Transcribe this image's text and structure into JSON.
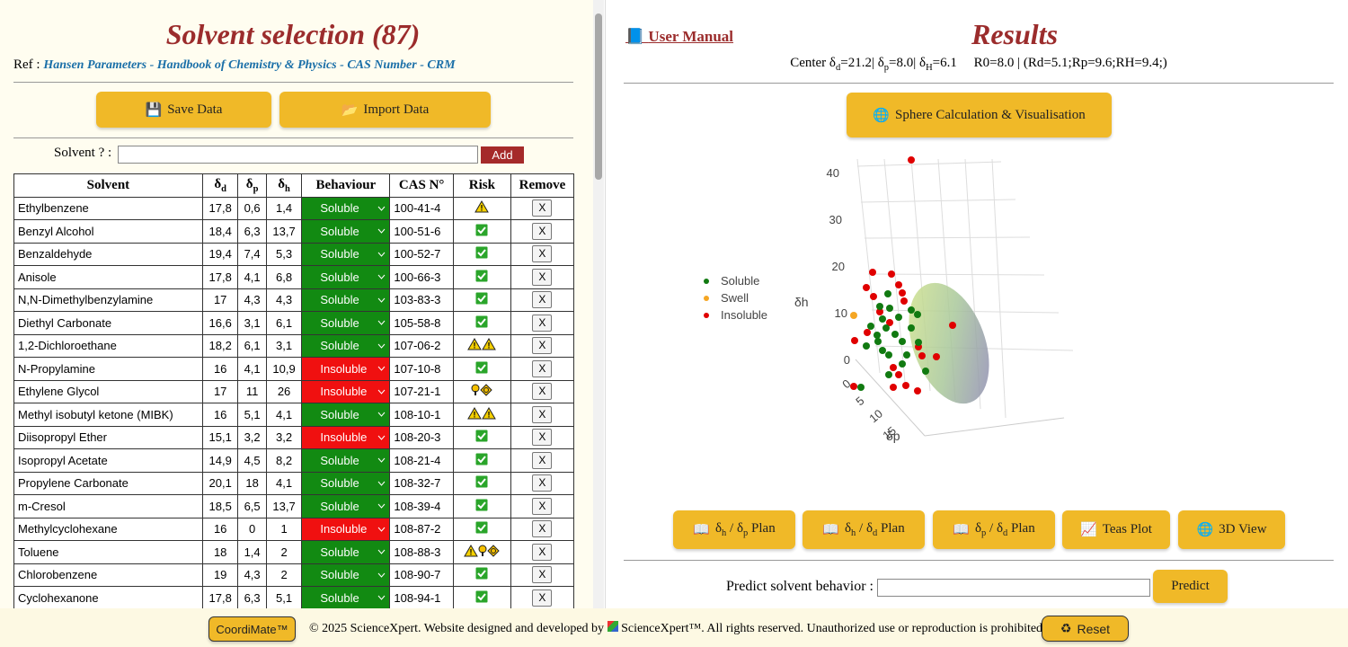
{
  "left": {
    "title": "Solvent selection (87)",
    "ref_label": "Ref :",
    "ref_links": [
      "Hansen Parameters",
      "Handbook of Chemistry & Physics",
      "CAS Number",
      "CRM"
    ],
    "ref_separator": " - ",
    "buttons": [
      "Save Data",
      "Import Data"
    ],
    "solvent_label": "Solvent ? :",
    "add": "Add",
    "table": {
      "headers": [
        "Solvent",
        [
          "δ",
          "d"
        ],
        [
          "δ",
          "p"
        ],
        [
          "δ",
          "h"
        ],
        "Behaviour",
        "CAS N°",
        "Risk",
        "Remove"
      ],
      "remove_label": "X",
      "rows": [
        [
          "Ethylbenzene",
          "17,8",
          "0,6",
          "1,4",
          "Soluble",
          "100-41-4"
        ],
        [
          "Benzyl Alcohol",
          "18,4",
          "6,3",
          "13,7",
          "Soluble",
          "100-51-6"
        ],
        [
          "Benzaldehyde",
          "19,4",
          "7,4",
          "5,3",
          "Soluble",
          "100-52-7"
        ],
        [
          "Anisole",
          "17,8",
          "4,1",
          "6,8",
          "Soluble",
          "100-66-3"
        ],
        [
          "N,N-Dimethylbenzylamine",
          "17",
          "4,3",
          "4,3",
          "Soluble",
          "103-83-3"
        ],
        [
          "Diethyl Carbonate",
          "16,6",
          "3,1",
          "6,1",
          "Soluble",
          "105-58-8"
        ],
        [
          "1,2-Dichloroethane",
          "18,2",
          "6,1",
          "3,1",
          "Soluble",
          "107-06-2"
        ],
        [
          "N-Propylamine",
          "16",
          "4,1",
          "10,9",
          "Insoluble",
          "107-10-8"
        ],
        [
          "Ethylene Glycol",
          "17",
          "11",
          "26",
          "Insoluble",
          "107-21-1"
        ],
        [
          "Methyl isobutyl ketone (MIBK)",
          "16",
          "5,1",
          "4,1",
          "Soluble",
          "108-10-1"
        ],
        [
          "Diisopropyl Ether",
          "15,1",
          "3,2",
          "3,2",
          "Insoluble",
          "108-20-3"
        ],
        [
          "Isopropyl Acetate",
          "14,9",
          "4,5",
          "8,2",
          "Soluble",
          "108-21-4"
        ],
        [
          "Propylene Carbonate",
          "20,1",
          "18",
          "4,1",
          "Soluble",
          "108-32-7"
        ],
        [
          "m-Cresol",
          "18,5",
          "6,5",
          "13,7",
          "Soluble",
          "108-39-4"
        ],
        [
          "Methylcyclohexane",
          "16",
          "0",
          "1",
          "Insoluble",
          "108-87-2"
        ],
        [
          "Toluene",
          "18",
          "1,4",
          "2",
          "Soluble",
          "108-88-3"
        ],
        [
          "Chlorobenzene",
          "19",
          "4,3",
          "2",
          "Soluble",
          "108-90-7"
        ],
        [
          "Cyclohexanone",
          "17,8",
          "6,3",
          "5,1",
          "Soluble",
          "108-94-1"
        ]
      ]
    }
  },
  "right": {
    "user_manual": "User Manual",
    "title": "Results",
    "center": [
      "Center δ",
      "d",
      "=21.2| δ",
      "p",
      "=8.0| δ",
      "H",
      "=6.1     R0=8.0 | (Rd=5.1;Rp=9.6;RH=9.4;)"
    ],
    "sphere_button": "Sphere Calculation & Visualisation",
    "plot": {
      "legend": [
        {
          "name": "Soluble",
          "color": "#117a11"
        },
        {
          "name": "Swell",
          "color": "#f5a623"
        },
        {
          "name": "Insoluble",
          "color": "#e00000"
        }
      ],
      "z_label": "δh",
      "x_label": "δp",
      "zticks": [
        40,
        30,
        20,
        10,
        0
      ],
      "xticks": [
        0,
        5,
        10,
        15
      ]
    },
    "plan_buttons": [
      [
        "δ",
        "h",
        " / δ",
        "p",
        " Plan"
      ],
      [
        "δ",
        "h",
        " / δ",
        "d",
        " Plan"
      ],
      [
        "δ",
        "p",
        " / δ",
        "d",
        " Plan"
      ],
      "Teas Plot",
      "3D View"
    ],
    "predict_label": "Predict solvent behavior :",
    "predict_button": "Predict"
  },
  "footer": {
    "app_button": "CoordiMate™",
    "copyright": "© 2025 ScienceXpert. Website designed and developed by",
    "brand": "ScienceXpert™",
    "rights": ". All rights reserved. Unauthorized use or reproduction is prohibited.",
    "reset": "Reset"
  }
}
